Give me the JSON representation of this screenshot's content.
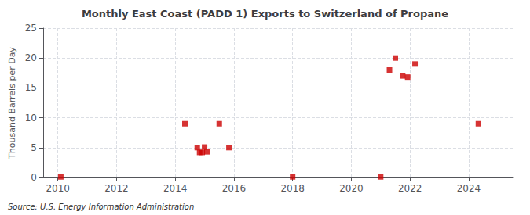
{
  "chart_data": {
    "type": "scatter",
    "title": "Monthly East Coast (PADD 1) Exports to Switzerland of Propane",
    "ylabel": "Thousand Barrels per Day",
    "source": "Source: U.S. Energy Information Administration",
    "x": [
      2010.1,
      2014.33,
      2014.75,
      2014.83,
      2014.92,
      2015.0,
      2015.08,
      2015.5,
      2015.83,
      2018.0,
      2021.0,
      2021.3,
      2021.5,
      2021.75,
      2021.92,
      2022.17,
      2024.33
    ],
    "values": [
      0.1,
      9.0,
      5.0,
      4.2,
      4.2,
      5.1,
      4.3,
      9.0,
      5.0,
      0.1,
      0.1,
      18.0,
      20.0,
      17.0,
      16.8,
      19.0,
      9.0
    ],
    "color": "#cc0000",
    "marker": "square",
    "xlim": [
      2009.5,
      2025.5
    ],
    "xticks": [
      2010,
      2012,
      2014,
      2016,
      2018,
      2020,
      2022,
      2024
    ],
    "ylim": [
      0,
      25
    ],
    "yticks": [
      0,
      5,
      10,
      15,
      20,
      25
    ],
    "grid": true
  }
}
